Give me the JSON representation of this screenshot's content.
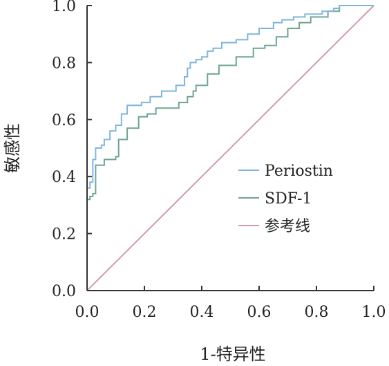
{
  "chart_data": {
    "type": "line",
    "xlabel": "1-特异性",
    "ylabel": "敏感性",
    "xlim": [
      0,
      1
    ],
    "ylim": [
      0,
      1
    ],
    "x_ticks": [
      "0.0",
      "0.2",
      "0.4",
      "0.6",
      "0.8",
      "1.0"
    ],
    "y_ticks": [
      "0.0",
      "0.2",
      "0.4",
      "0.6",
      "0.8",
      "1.0"
    ],
    "grid": false,
    "legend_position": "right",
    "series": [
      {
        "name": "Periostin",
        "color": "#7fb6da",
        "x": [
          0,
          0,
          0.01,
          0.01,
          0.02,
          0.02,
          0.03,
          0.03,
          0.05,
          0.05,
          0.06,
          0.06,
          0.08,
          0.08,
          0.1,
          0.1,
          0.12,
          0.12,
          0.14,
          0.14,
          0.19,
          0.19,
          0.22,
          0.22,
          0.26,
          0.26,
          0.31,
          0.31,
          0.34,
          0.34,
          0.35,
          0.35,
          0.36,
          0.36,
          0.38,
          0.38,
          0.4,
          0.4,
          0.42,
          0.42,
          0.44,
          0.44,
          0.47,
          0.47,
          0.52,
          0.52,
          0.56,
          0.56,
          0.6,
          0.6,
          0.65,
          0.65,
          0.68,
          0.68,
          0.72,
          0.72,
          0.76,
          0.76,
          0.82,
          0.82,
          0.86,
          0.86,
          0.88,
          0.88,
          0.96,
          0.96,
          1.0
        ],
        "y": [
          0,
          0.36,
          0.36,
          0.38,
          0.38,
          0.46,
          0.46,
          0.5,
          0.5,
          0.51,
          0.51,
          0.53,
          0.53,
          0.56,
          0.56,
          0.58,
          0.58,
          0.62,
          0.62,
          0.65,
          0.65,
          0.66,
          0.66,
          0.68,
          0.68,
          0.7,
          0.7,
          0.72,
          0.72,
          0.75,
          0.75,
          0.78,
          0.78,
          0.8,
          0.8,
          0.81,
          0.81,
          0.82,
          0.82,
          0.84,
          0.84,
          0.85,
          0.85,
          0.87,
          0.87,
          0.88,
          0.88,
          0.9,
          0.9,
          0.92,
          0.92,
          0.94,
          0.94,
          0.95,
          0.95,
          0.96,
          0.96,
          0.97,
          0.97,
          0.98,
          0.98,
          0.99,
          0.99,
          1.0,
          1.0,
          1.0,
          1.0
        ]
      },
      {
        "name": "SDF-1",
        "color": "#6fa58f",
        "x": [
          0,
          0,
          0.01,
          0.01,
          0.02,
          0.02,
          0.03,
          0.03,
          0.06,
          0.06,
          0.1,
          0.1,
          0.11,
          0.11,
          0.14,
          0.14,
          0.18,
          0.18,
          0.21,
          0.21,
          0.24,
          0.24,
          0.32,
          0.32,
          0.35,
          0.35,
          0.37,
          0.37,
          0.38,
          0.38,
          0.42,
          0.42,
          0.46,
          0.46,
          0.52,
          0.52,
          0.58,
          0.58,
          0.62,
          0.62,
          0.66,
          0.66,
          0.7,
          0.7,
          0.74,
          0.74,
          0.78,
          0.78,
          0.84,
          0.84,
          0.88,
          0.88,
          0.96,
          0.96,
          1.0
        ],
        "y": [
          0,
          0.32,
          0.32,
          0.33,
          0.33,
          0.34,
          0.34,
          0.44,
          0.44,
          0.46,
          0.46,
          0.47,
          0.47,
          0.53,
          0.53,
          0.57,
          0.57,
          0.61,
          0.61,
          0.62,
          0.62,
          0.64,
          0.64,
          0.66,
          0.66,
          0.68,
          0.68,
          0.7,
          0.7,
          0.72,
          0.72,
          0.76,
          0.76,
          0.79,
          0.79,
          0.82,
          0.82,
          0.85,
          0.85,
          0.86,
          0.86,
          0.89,
          0.89,
          0.92,
          0.92,
          0.94,
          0.94,
          0.96,
          0.96,
          0.98,
          0.98,
          1.0,
          1.0,
          1.0,
          1.0
        ]
      },
      {
        "name": "参考线",
        "color": "#d59aa6",
        "x": [
          0,
          1
        ],
        "y": [
          0,
          1
        ]
      }
    ]
  }
}
